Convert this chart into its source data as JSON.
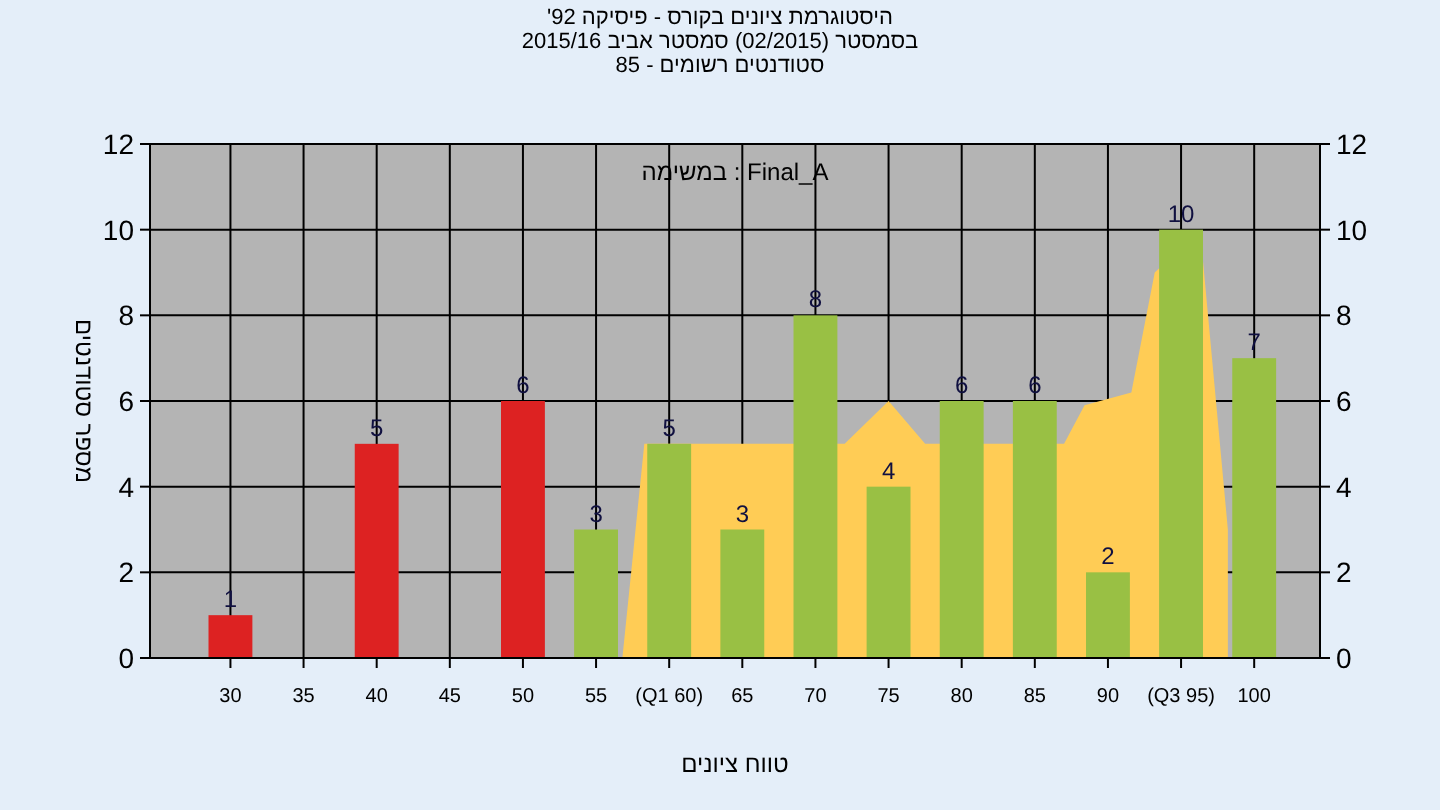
{
  "chart_data": {
    "type": "bar",
    "title": "'היסטוגרמת ציונים בקורס - פיסיקה 92",
    "subtitle": "בסמסטר  (02/2015)  סמסטר אביב 2015/16\nסטודנטים רשומים - 85",
    "xlabel": "טווח ציונים",
    "ylabel": "מספר סטודנטים",
    "annotations": [
      "במשימה : Final_A"
    ],
    "series": [
      {
        "type": "area",
        "color": "#ffcc55",
        "x": [
          56.8,
          58.3,
          72,
          75,
          77.5,
          87,
          88.4,
          91.6,
          93.2,
          96.3,
          98.2
        ],
        "values": [
          0,
          5,
          5,
          6,
          5,
          5,
          5.9,
          6.2,
          9,
          10,
          3
        ]
      },
      {
        "x": [
          30,
          40,
          50,
          55,
          60,
          65,
          70,
          75,
          80,
          85,
          90,
          95,
          100
        ],
        "values": [
          1,
          5,
          6,
          3,
          5,
          3,
          8,
          4,
          6,
          6,
          2,
          10,
          7
        ],
        "value_labels": [
          "1",
          "5",
          "6",
          "3",
          "5",
          "3",
          "8",
          "4",
          "6",
          "6",
          "2",
          "10",
          "7"
        ],
        "colors": [
          "#dd2222",
          "#dd2222",
          "#dd2222",
          "#99c044",
          "#99c044",
          "#99c044",
          "#99c044",
          "#99c044",
          "#99c044",
          "#99c044",
          "#99c044",
          "#99c044",
          "#99c044"
        ]
      }
    ],
    "xlim": [
      24.5,
      104.5
    ],
    "xticks": [
      30,
      35,
      40,
      45,
      50,
      55,
      {
        "value": 60,
        "label": "(Q1 60)"
      },
      65,
      70,
      75,
      80,
      85,
      90,
      {
        "value": 95,
        "label": "(Q3 95)"
      },
      100
    ],
    "ylim": [
      0,
      12
    ],
    "yticks": [
      0,
      2,
      4,
      6,
      8,
      10,
      12
    ],
    "y2lim": [
      0,
      12
    ],
    "y2ticks": [
      0,
      2,
      4,
      6,
      8,
      10,
      12
    ],
    "grid": true
  }
}
